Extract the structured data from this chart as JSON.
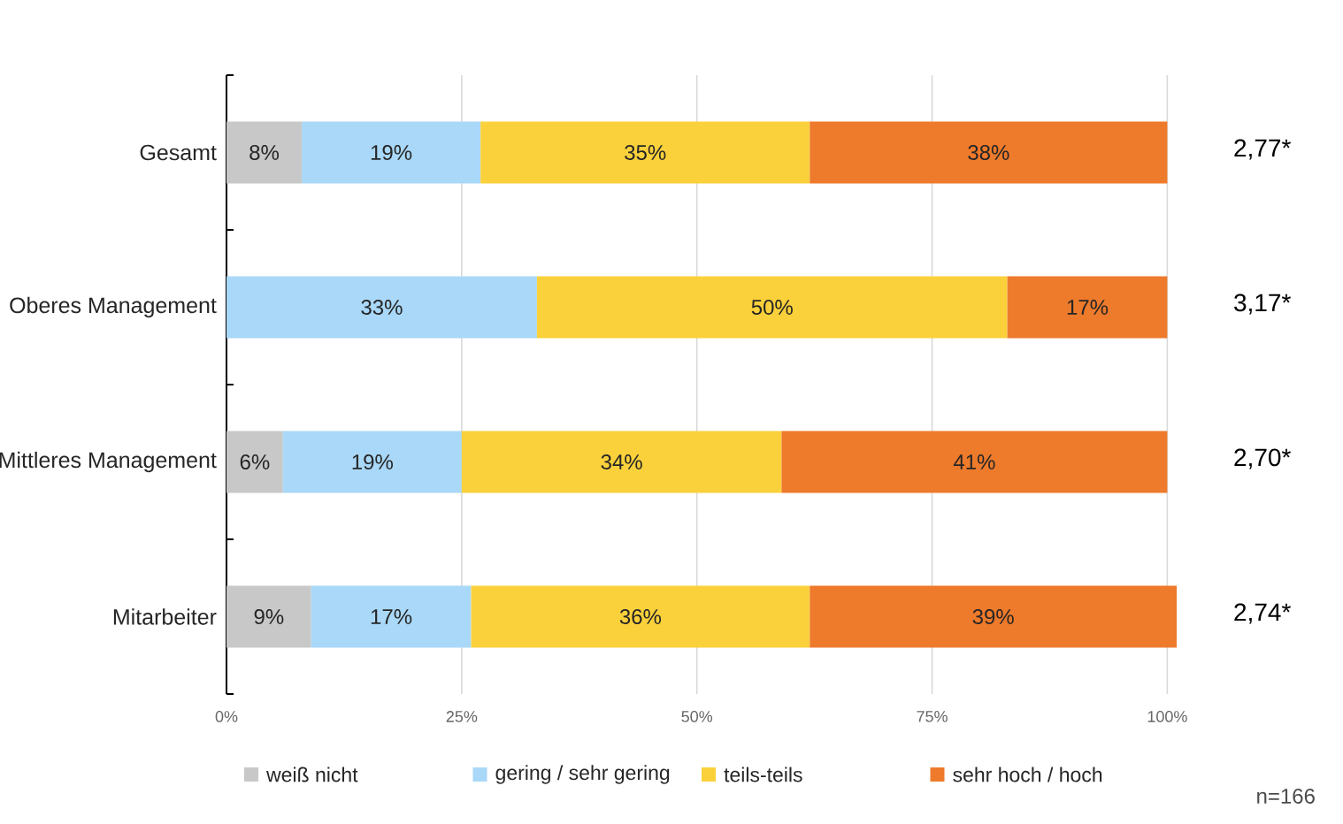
{
  "chart_data": {
    "type": "bar",
    "orientation": "horizontal",
    "stacked": true,
    "categories": [
      "Gesamt",
      "Oberes Management",
      "Mittleres Management",
      "Mitarbeiter"
    ],
    "series": [
      {
        "name": "weiß nicht",
        "color": "#c8c8c8",
        "values": [
          8,
          null,
          6,
          9
        ],
        "value_labels": [
          "8%",
          null,
          "6%",
          "9%"
        ]
      },
      {
        "name": "gering / sehr gering",
        "color": "#a9d8f8",
        "values": [
          19,
          33,
          19,
          17
        ],
        "value_labels": [
          "19%",
          "33%",
          "19%",
          "17%"
        ]
      },
      {
        "name": "teils-teils",
        "color": "#fbd13b",
        "values": [
          35,
          50,
          34,
          36
        ],
        "value_labels": [
          "35%",
          "50%",
          "34%",
          "36%"
        ]
      },
      {
        "name": "sehr hoch / hoch",
        "color": "#ee7a2b",
        "values": [
          38,
          17,
          41,
          39
        ],
        "value_labels": [
          "38%",
          "17%",
          "41%",
          "39%"
        ]
      }
    ],
    "xlim": [
      0,
      101
    ],
    "xticks": [
      {
        "value": 0,
        "label": "0%"
      },
      {
        "value": 25,
        "label": "25%"
      },
      {
        "value": 50,
        "label": "50%"
      },
      {
        "value": 75,
        "label": "75%"
      },
      {
        "value": 100,
        "label": "100%"
      }
    ],
    "grid": "x",
    "legend": "bottom",
    "annotations": [
      "2,77*",
      "3,17*",
      "2,70*",
      "2,74*",
      "n=166"
    ]
  }
}
